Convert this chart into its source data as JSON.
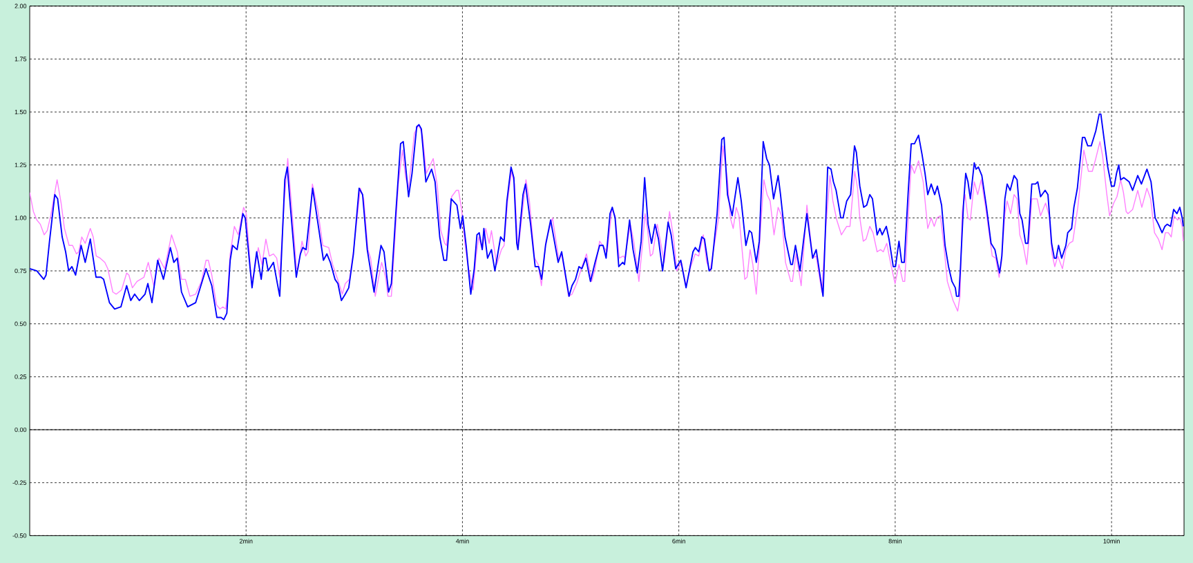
{
  "chart_data": {
    "type": "line",
    "xlim": [
      0,
      10.67
    ],
    "xticks": [
      {
        "value": 2,
        "label": "2min"
      },
      {
        "value": 4,
        "label": "4min"
      },
      {
        "value": 6,
        "label": "6min"
      },
      {
        "value": 8,
        "label": "8min"
      },
      {
        "value": 10,
        "label": "10min"
      }
    ],
    "ylim": [
      -0.5,
      2.0
    ],
    "yticks": [
      {
        "value": -0.5,
        "label": "-0.50"
      },
      {
        "value": -0.25,
        "label": "-0.25"
      },
      {
        "value": 0,
        "label": "0.00"
      },
      {
        "value": 0.25,
        "label": "0.25"
      },
      {
        "value": 0.5,
        "label": "0.50"
      },
      {
        "value": 0.75,
        "label": "0.75"
      },
      {
        "value": 1.0,
        "label": "1.00"
      },
      {
        "value": 1.25,
        "label": "1.25"
      },
      {
        "value": 1.5,
        "label": "1.50"
      },
      {
        "value": 1.75,
        "label": "1.75"
      },
      {
        "value": 2.0,
        "label": "2.00"
      }
    ],
    "grid": true,
    "ref_lines": [
      {
        "axis": "y",
        "value": 0,
        "color": "#000000",
        "line_style": "solid"
      }
    ],
    "series": [
      {
        "color": "#ff80ff",
        "x": [
          0,
          0.034,
          0.066,
          0.098,
          0.134,
          0.162,
          0.194,
          0.253,
          0.29,
          0.321,
          0.364,
          0.396,
          0.432,
          0.453,
          0.481,
          0.513,
          0.56,
          0.587,
          0.615,
          0.651,
          0.694,
          0.722,
          0.768,
          0.8,
          0.849,
          0.896,
          0.917,
          0.949,
          0.992,
          1.056,
          1.096,
          1.147,
          1.194,
          1.247,
          1.311,
          1.364,
          1.403,
          1.439,
          1.481,
          1.534,
          1.587,
          1.63,
          1.651,
          1.683,
          1.726,
          1.758,
          1.786,
          1.811,
          1.828,
          1.853,
          1.892,
          1.928,
          1.977,
          2.002,
          2.045,
          2.062,
          2.113,
          2.147,
          2.183,
          2.215,
          2.253,
          2.283,
          2.311,
          2.353,
          2.385,
          2.417,
          2.466,
          2.481,
          2.517,
          2.551,
          2.573,
          2.613,
          2.662,
          2.709,
          2.764,
          2.8,
          2.853,
          2.889,
          2.917,
          2.956,
          2.992,
          3.056,
          3.087,
          3.126,
          3.151,
          3.194,
          3.226,
          3.253,
          3.29,
          3.311,
          3.343,
          3.407,
          3.445,
          3.475,
          3.502,
          3.556,
          3.598,
          3.63,
          3.666,
          3.73,
          3.768,
          3.8,
          3.836,
          3.853,
          3.879,
          3.9,
          3.943,
          3.964,
          3.992,
          4.023,
          4.049,
          4.098,
          4.126,
          4.151,
          4.183,
          4.215,
          4.247,
          4.268,
          4.317,
          4.36,
          4.385,
          4.417,
          4.453,
          4.481,
          4.509,
          4.524,
          4.587,
          4.619,
          4.666,
          4.7,
          4.73,
          4.772,
          4.832,
          4.892,
          4.917,
          4.981,
          5.013,
          5.056,
          5.098,
          5.147,
          5.194,
          5.226,
          5.268,
          5.296,
          5.338,
          5.381,
          5.411,
          5.449,
          5.487,
          5.502,
          5.551,
          5.583,
          5.631,
          5.658,
          5.688,
          5.71,
          5.737,
          5.758,
          5.801,
          5.865,
          5.914,
          5.95,
          5.982,
          6.024,
          6.067,
          6.11,
          6.152,
          6.184,
          6.226,
          6.258,
          6.29,
          6.365,
          6.407,
          6.45,
          6.476,
          6.503,
          6.531,
          6.556,
          6.61,
          6.631,
          6.659,
          6.684,
          6.716,
          6.758,
          6.786,
          6.816,
          6.844,
          6.88,
          6.918,
          6.95,
          6.986,
          7.035,
          7.05,
          7.084,
          7.131,
          7.184,
          7.216,
          7.237,
          7.27,
          7.322,
          7.361,
          7.397,
          7.424,
          7.46,
          7.503,
          7.552,
          7.582,
          7.626,
          7.652,
          7.673,
          7.705,
          7.731,
          7.765,
          7.795,
          7.833,
          7.865,
          7.89,
          7.922,
          7.96,
          7.999,
          8.035,
          8.071,
          8.088,
          8.12,
          8.148,
          8.178,
          8.216,
          8.259,
          8.28,
          8.301,
          8.333,
          8.361,
          8.386,
          8.418,
          8.45,
          8.482,
          8.535,
          8.578,
          8.599,
          8.62,
          8.646,
          8.673,
          8.695,
          8.731,
          8.763,
          8.795,
          8.833,
          8.876,
          8.897,
          8.929,
          8.961,
          8.982,
          9.014,
          9.035,
          9.067,
          9.099,
          9.127,
          9.152,
          9.184,
          9.216,
          9.237,
          9.263,
          9.312,
          9.344,
          9.39,
          9.424,
          9.45,
          9.475,
          9.503,
          9.546,
          9.578,
          9.61,
          9.642,
          9.688,
          9.744,
          9.786,
          9.822,
          9.854,
          9.893,
          9.918,
          9.954,
          9.982,
          10.02,
          10.05,
          10.084,
          10.11,
          10.135,
          10.152,
          10.195,
          10.242,
          10.28,
          10.327,
          10.361,
          10.397,
          10.433,
          10.467,
          10.497,
          10.525,
          10.552,
          10.578,
          10.61,
          10.631,
          10.653,
          10.663
        ],
        "values": [
          1.12,
          1.03,
          0.99,
          0.97,
          0.92,
          0.94,
          1.01,
          1.18,
          1.07,
          0.95,
          0.87,
          0.87,
          0.83,
          0.84,
          0.91,
          0.88,
          0.95,
          0.91,
          0.82,
          0.81,
          0.79,
          0.76,
          0.65,
          0.64,
          0.66,
          0.74,
          0.73,
          0.67,
          0.7,
          0.72,
          0.79,
          0.68,
          0.81,
          0.76,
          0.92,
          0.84,
          0.71,
          0.71,
          0.63,
          0.64,
          0.7,
          0.8,
          0.8,
          0.73,
          0.59,
          0.57,
          0.58,
          0.57,
          0.63,
          0.83,
          0.96,
          0.92,
          1.05,
          1.02,
          0.73,
          0.71,
          0.86,
          0.78,
          0.9,
          0.82,
          0.83,
          0.81,
          0.72,
          1.08,
          1.28,
          1.08,
          0.76,
          0.76,
          0.89,
          0.82,
          0.84,
          1.16,
          1.04,
          0.87,
          0.86,
          0.78,
          0.7,
          0.64,
          0.69,
          0.71,
          0.84,
          1.14,
          1.09,
          0.85,
          0.81,
          0.63,
          0.72,
          0.79,
          0.72,
          0.63,
          0.63,
          1.16,
          1.32,
          1.19,
          1.14,
          1.4,
          1.44,
          1.39,
          1.21,
          1.28,
          1.15,
          0.94,
          0.88,
          0.87,
          1.0,
          1.1,
          1.13,
          1.13,
          1.04,
          0.88,
          0.78,
          0.66,
          0.82,
          0.91,
          0.85,
          0.95,
          0.88,
          0.94,
          0.78,
          0.85,
          0.87,
          1.08,
          1.22,
          1.16,
          0.88,
          0.89,
          1.18,
          1.08,
          0.81,
          0.78,
          0.68,
          0.89,
          1.0,
          0.8,
          0.83,
          0.63,
          0.64,
          0.69,
          0.76,
          0.83,
          0.7,
          0.76,
          0.89,
          0.87,
          0.84,
          1.04,
          1.01,
          0.81,
          0.82,
          0.81,
          0.97,
          0.89,
          0.7,
          0.84,
          1.02,
          0.95,
          0.82,
          0.83,
          0.97,
          0.79,
          1.03,
          0.91,
          0.75,
          0.79,
          0.68,
          0.77,
          0.83,
          0.82,
          0.92,
          0.79,
          0.75,
          0.99,
          1.34,
          1.18,
          1.0,
          0.95,
          1.05,
          1.01,
          0.71,
          0.72,
          0.85,
          0.78,
          0.64,
          0.97,
          1.18,
          1.11,
          1.08,
          0.92,
          1.05,
          1.01,
          0.79,
          0.7,
          0.7,
          0.83,
          0.68,
          1.06,
          0.91,
          0.81,
          0.82,
          0.65,
          0.97,
          1.2,
          1.08,
          0.99,
          0.92,
          0.96,
          0.96,
          1.22,
          1.14,
          1.0,
          0.89,
          0.9,
          0.96,
          0.93,
          0.84,
          0.85,
          0.84,
          0.88,
          0.78,
          0.69,
          0.78,
          0.7,
          0.7,
          1.0,
          1.25,
          1.21,
          1.27,
          1.17,
          1.06,
          0.95,
          1.0,
          0.96,
          1.0,
          1.01,
          0.87,
          0.7,
          0.61,
          0.56,
          0.63,
          1.03,
          1.11,
          1.0,
          0.99,
          1.17,
          1.11,
          1.18,
          1.06,
          0.9,
          0.82,
          0.81,
          0.72,
          0.79,
          1.02,
          1.08,
          1.02,
          1.11,
          1.09,
          0.92,
          0.87,
          0.78,
          0.9,
          1.09,
          1.09,
          1.01,
          1.07,
          1.01,
          0.83,
          0.77,
          0.82,
          0.76,
          0.85,
          0.88,
          0.89,
          1.05,
          1.32,
          1.22,
          1.22,
          1.28,
          1.36,
          1.29,
          1.12,
          1.01,
          1.07,
          1.1,
          1.18,
          1.12,
          1.03,
          1.02,
          1.04,
          1.13,
          1.05,
          1.14,
          1.09,
          0.93,
          0.9,
          0.85,
          0.93,
          0.93,
          0.91,
          1.01,
          0.99,
          1.0,
          0.96,
          0.89
        ]
      },
      {
        "color": "#0000ff",
        "x": [
          0,
          0.066,
          0.13,
          0.151,
          0.183,
          0.232,
          0.258,
          0.3,
          0.332,
          0.36,
          0.39,
          0.424,
          0.475,
          0.513,
          0.56,
          0.613,
          0.658,
          0.683,
          0.737,
          0.785,
          0.843,
          0.896,
          0.934,
          0.97,
          1.013,
          1.066,
          1.092,
          1.13,
          1.183,
          1.236,
          1.3,
          1.332,
          1.364,
          1.403,
          1.46,
          1.534,
          1.63,
          1.683,
          1.73,
          1.768,
          1.794,
          1.822,
          1.853,
          1.875,
          1.917,
          1.97,
          1.992,
          2.055,
          2.098,
          2.14,
          2.162,
          2.183,
          2.204,
          2.253,
          2.311,
          2.358,
          2.381,
          2.41,
          2.464,
          2.502,
          2.524,
          2.555,
          2.615,
          2.645,
          2.715,
          2.747,
          2.779,
          2.822,
          2.849,
          2.881,
          2.917,
          2.949,
          2.992,
          3.045,
          3.077,
          3.12,
          3.183,
          3.247,
          3.275,
          3.317,
          3.343,
          3.385,
          3.428,
          3.453,
          3.502,
          3.534,
          3.577,
          3.598,
          3.62,
          3.662,
          3.715,
          3.747,
          3.79,
          3.828,
          3.853,
          3.875,
          3.896,
          3.949,
          3.981,
          4.002,
          4.034,
          4.077,
          4.109,
          4.134,
          4.155,
          4.183,
          4.198,
          4.232,
          4.268,
          4.3,
          4.353,
          4.385,
          4.411,
          4.449,
          4.475,
          4.502,
          4.513,
          4.56,
          4.583,
          4.63,
          4.672,
          4.704,
          4.732,
          4.768,
          4.815,
          4.885,
          4.917,
          4.985,
          5.013,
          5.045,
          5.077,
          5.104,
          5.141,
          5.183,
          5.226,
          5.268,
          5.3,
          5.328,
          5.364,
          5.385,
          5.411,
          5.445,
          5.481,
          5.498,
          5.545,
          5.577,
          5.616,
          5.652,
          5.684,
          5.716,
          5.748,
          5.78,
          5.812,
          5.85,
          5.901,
          5.929,
          5.971,
          6.018,
          6.067,
          6.131,
          6.152,
          6.184,
          6.212,
          6.237,
          6.28,
          6.301,
          6.354,
          6.397,
          6.418,
          6.45,
          6.493,
          6.546,
          6.577,
          6.62,
          6.652,
          6.673,
          6.716,
          6.744,
          6.78,
          6.812,
          6.838,
          6.876,
          6.918,
          6.94,
          6.982,
          7.035,
          7.05,
          7.078,
          7.12,
          7.152,
          7.184,
          7.237,
          7.27,
          7.333,
          7.376,
          7.407,
          7.429,
          7.454,
          7.497,
          7.518,
          7.552,
          7.588,
          7.624,
          7.641,
          7.673,
          7.709,
          7.737,
          7.765,
          7.79,
          7.833,
          7.858,
          7.88,
          7.918,
          7.943,
          7.982,
          8.003,
          8.035,
          8.06,
          8.084,
          8.12,
          8.148,
          8.178,
          8.216,
          8.248,
          8.276,
          8.301,
          8.333,
          8.365,
          8.39,
          8.429,
          8.461,
          8.493,
          8.525,
          8.556,
          8.567,
          8.588,
          8.603,
          8.631,
          8.652,
          8.673,
          8.695,
          8.731,
          8.748,
          8.769,
          8.801,
          8.844,
          8.886,
          8.922,
          8.965,
          8.986,
          9.014,
          9.035,
          9.063,
          9.099,
          9.127,
          9.152,
          9.173,
          9.205,
          9.227,
          9.263,
          9.297,
          9.318,
          9.344,
          9.386,
          9.412,
          9.446,
          9.471,
          9.488,
          9.51,
          9.539,
          9.578,
          9.595,
          9.631,
          9.652,
          9.684,
          9.731,
          9.752,
          9.78,
          9.812,
          9.854,
          9.886,
          9.901,
          9.929,
          9.965,
          9.999,
          10.025,
          10.046,
          10.067,
          10.084,
          10.114,
          10.163,
          10.195,
          10.242,
          10.276,
          10.327,
          10.365,
          10.403,
          10.433,
          10.467,
          10.493,
          10.514,
          10.546,
          10.574,
          10.604,
          10.631,
          10.653,
          10.663
        ],
        "values": [
          0.76,
          0.75,
          0.71,
          0.73,
          0.89,
          1.11,
          1.09,
          0.91,
          0.84,
          0.75,
          0.77,
          0.73,
          0.87,
          0.79,
          0.9,
          0.72,
          0.72,
          0.71,
          0.6,
          0.57,
          0.58,
          0.68,
          0.61,
          0.64,
          0.61,
          0.64,
          0.69,
          0.6,
          0.8,
          0.71,
          0.86,
          0.79,
          0.81,
          0.65,
          0.58,
          0.6,
          0.76,
          0.68,
          0.53,
          0.53,
          0.52,
          0.55,
          0.8,
          0.87,
          0.85,
          1.02,
          1.0,
          0.67,
          0.84,
          0.71,
          0.81,
          0.81,
          0.75,
          0.79,
          0.63,
          1.18,
          1.24,
          1.05,
          0.72,
          0.83,
          0.86,
          0.85,
          1.14,
          1.04,
          0.8,
          0.83,
          0.79,
          0.71,
          0.69,
          0.61,
          0.64,
          0.67,
          0.83,
          1.14,
          1.11,
          0.85,
          0.65,
          0.87,
          0.84,
          0.65,
          0.69,
          1.03,
          1.35,
          1.36,
          1.1,
          1.21,
          1.43,
          1.44,
          1.42,
          1.17,
          1.23,
          1.17,
          0.91,
          0.8,
          0.8,
          0.94,
          1.09,
          1.06,
          0.95,
          1.01,
          0.87,
          0.64,
          0.76,
          0.92,
          0.93,
          0.85,
          0.95,
          0.81,
          0.85,
          0.75,
          0.91,
          0.89,
          1.08,
          1.24,
          1.19,
          0.88,
          0.85,
          1.11,
          1.16,
          0.97,
          0.77,
          0.77,
          0.71,
          0.87,
          0.99,
          0.79,
          0.84,
          0.63,
          0.68,
          0.71,
          0.77,
          0.76,
          0.81,
          0.7,
          0.79,
          0.87,
          0.87,
          0.81,
          1.02,
          1.05,
          1.0,
          0.77,
          0.79,
          0.78,
          0.99,
          0.85,
          0.74,
          0.89,
          1.19,
          0.97,
          0.88,
          0.97,
          0.9,
          0.75,
          0.98,
          0.92,
          0.76,
          0.8,
          0.67,
          0.84,
          0.86,
          0.84,
          0.91,
          0.9,
          0.75,
          0.76,
          1.02,
          1.37,
          1.38,
          1.11,
          1.01,
          1.19,
          1.08,
          0.87,
          0.94,
          0.93,
          0.79,
          0.89,
          1.36,
          1.28,
          1.25,
          1.09,
          1.2,
          1.11,
          0.91,
          0.78,
          0.78,
          0.87,
          0.75,
          0.89,
          1.02,
          0.81,
          0.85,
          0.63,
          1.24,
          1.23,
          1.17,
          1.13,
          1.0,
          1.0,
          1.08,
          1.11,
          1.34,
          1.31,
          1.15,
          1.05,
          1.06,
          1.11,
          1.09,
          0.92,
          0.95,
          0.92,
          0.96,
          0.9,
          0.77,
          0.77,
          0.89,
          0.79,
          0.79,
          1.12,
          1.35,
          1.35,
          1.39,
          1.3,
          1.21,
          1.11,
          1.16,
          1.11,
          1.15,
          1.06,
          0.87,
          0.77,
          0.7,
          0.67,
          0.63,
          0.63,
          0.76,
          1.06,
          1.21,
          1.17,
          1.09,
          1.26,
          1.23,
          1.24,
          1.2,
          1.05,
          0.88,
          0.85,
          0.74,
          0.82,
          1.09,
          1.16,
          1.13,
          1.2,
          1.18,
          1.02,
          0.99,
          0.88,
          0.88,
          1.16,
          1.16,
          1.17,
          1.1,
          1.13,
          1.11,
          0.88,
          0.81,
          0.81,
          0.87,
          0.81,
          0.87,
          0.93,
          0.95,
          1.05,
          1.14,
          1.38,
          1.38,
          1.34,
          1.34,
          1.41,
          1.49,
          1.49,
          1.38,
          1.24,
          1.15,
          1.15,
          1.21,
          1.25,
          1.18,
          1.19,
          1.17,
          1.13,
          1.2,
          1.16,
          1.23,
          1.17,
          1.0,
          0.97,
          0.93,
          0.96,
          0.97,
          0.96,
          1.04,
          1.02,
          1.05,
          1.0,
          0.96
        ]
      }
    ]
  }
}
